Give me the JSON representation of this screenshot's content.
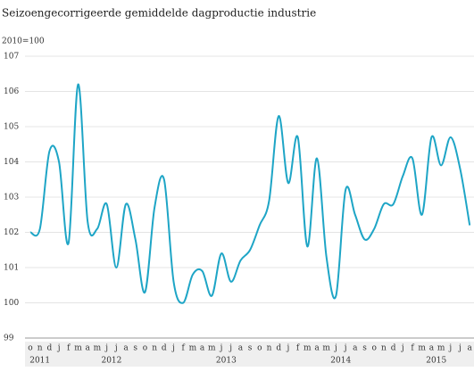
{
  "chart_data": {
    "type": "line",
    "title": "Seizoengecorrigeerde gemiddelde dagproductie industrie",
    "unit_label": "2010=100",
    "categories": [
      "o",
      "n",
      "d",
      "j",
      "f",
      "m",
      "a",
      "m",
      "j",
      "j",
      "a",
      "s",
      "o",
      "n",
      "d",
      "j",
      "f",
      "m",
      "a",
      "m",
      "j",
      "j",
      "a",
      "s",
      "o",
      "n",
      "d",
      "j",
      "f",
      "m",
      "a",
      "m",
      "j",
      "j",
      "a",
      "s",
      "o",
      "n",
      "d",
      "j",
      "f",
      "m",
      "a",
      "m",
      "j",
      "j",
      "a"
    ],
    "year_groups": [
      {
        "label": "2011",
        "count": 3
      },
      {
        "label": "2012",
        "count": 12
      },
      {
        "label": "2013",
        "count": 12
      },
      {
        "label": "2014",
        "count": 12
      },
      {
        "label": "2015",
        "count": 8
      }
    ],
    "series": [
      {
        "name": "Dagproductie industrie",
        "color": "#1ea5c6",
        "values": [
          102.0,
          102.1,
          104.3,
          104.0,
          101.7,
          106.2,
          102.3,
          102.1,
          102.8,
          101.0,
          102.8,
          101.8,
          100.3,
          102.7,
          103.5,
          100.6,
          100.0,
          100.8,
          100.9,
          100.2,
          101.4,
          100.6,
          101.2,
          101.5,
          102.2,
          102.9,
          105.3,
          103.4,
          104.7,
          101.6,
          104.1,
          101.3,
          100.2,
          103.2,
          102.5,
          101.8,
          102.1,
          102.8,
          102.8,
          103.6,
          104.1,
          102.5,
          104.7,
          103.9,
          104.7,
          103.8,
          102.2
        ]
      }
    ],
    "ylim": [
      99,
      107
    ],
    "yticks": [
      99,
      100,
      101,
      102,
      103,
      104,
      105,
      106,
      107
    ],
    "grid": true
  }
}
